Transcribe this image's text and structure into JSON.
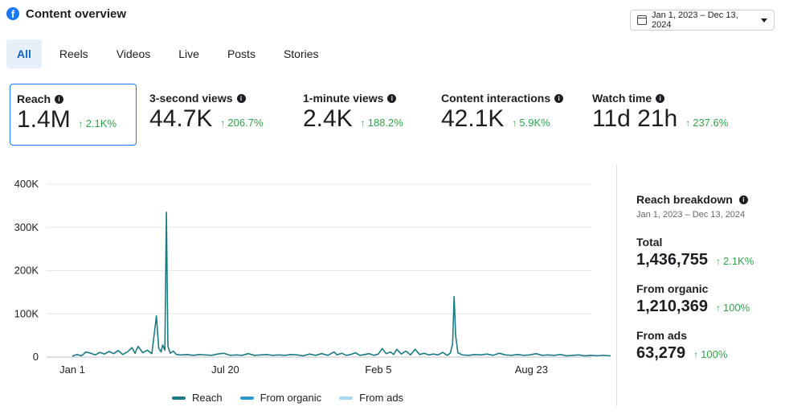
{
  "header": {
    "title": "Content overview",
    "logo_icon": "facebook-icon",
    "logo_letter": "f"
  },
  "date_range": {
    "label": "Jan 1, 2023 – Dec 13, 2024",
    "icon": "calendar-icon"
  },
  "tabs": [
    {
      "label": "All",
      "active": true
    },
    {
      "label": "Reels",
      "active": false
    },
    {
      "label": "Videos",
      "active": false
    },
    {
      "label": "Live",
      "active": false
    },
    {
      "label": "Posts",
      "active": false
    },
    {
      "label": "Stories",
      "active": false
    }
  ],
  "metrics": [
    {
      "label": "Reach",
      "value": "1.4M",
      "change": "2.1K%",
      "selected": true
    },
    {
      "label": "3-second views",
      "value": "44.7K",
      "change": "206.7%",
      "selected": false
    },
    {
      "label": "1-minute views",
      "value": "2.4K",
      "change": "188.2%",
      "selected": false
    },
    {
      "label": "Content interactions",
      "value": "42.1K",
      "change": "5.9K%",
      "selected": false
    },
    {
      "label": "Watch time",
      "value": "11d 21h",
      "change": "237.6%",
      "selected": false
    }
  ],
  "info_glyph": "i",
  "arrow_glyph": "↑",
  "chart_data": {
    "type": "line",
    "y_ticks": [
      "0",
      "100K",
      "200K",
      "300K",
      "400K"
    ],
    "y_tick_values": [
      0,
      100000,
      200000,
      300000,
      400000
    ],
    "ylim": [
      0,
      400000
    ],
    "x_ticks": [
      "Jan 1",
      "Jul 20",
      "Feb 5",
      "Aug 23"
    ],
    "x_tick_days": [
      0,
      200,
      400,
      600
    ],
    "x_range_days": [
      0,
      712
    ],
    "grid": true,
    "legend_placement": "bottom",
    "series": [
      {
        "name": "Reach",
        "color": "#1b7b85",
        "points": [
          [
            0,
            2000
          ],
          [
            6,
            6000
          ],
          [
            12,
            3000
          ],
          [
            18,
            12000
          ],
          [
            24,
            9000
          ],
          [
            30,
            5000
          ],
          [
            36,
            11000
          ],
          [
            42,
            7000
          ],
          [
            48,
            13000
          ],
          [
            54,
            8000
          ],
          [
            60,
            15000
          ],
          [
            66,
            6000
          ],
          [
            72,
            12000
          ],
          [
            78,
            22000
          ],
          [
            82,
            9000
          ],
          [
            86,
            25000
          ],
          [
            92,
            10000
          ],
          [
            98,
            16000
          ],
          [
            104,
            8000
          ],
          [
            110,
            95000
          ],
          [
            113,
            20000
          ],
          [
            116,
            12000
          ],
          [
            118,
            28000
          ],
          [
            121,
            16000
          ],
          [
            123,
            335000
          ],
          [
            125,
            25000
          ],
          [
            128,
            9000
          ],
          [
            132,
            14000
          ],
          [
            136,
            6000
          ],
          [
            142,
            5000
          ],
          [
            150,
            6000
          ],
          [
            158,
            4000
          ],
          [
            166,
            6000
          ],
          [
            174,
            5000
          ],
          [
            182,
            4000
          ],
          [
            190,
            7000
          ],
          [
            198,
            9000
          ],
          [
            206,
            4000
          ],
          [
            214,
            5000
          ],
          [
            222,
            4000
          ],
          [
            230,
            8000
          ],
          [
            238,
            4000
          ],
          [
            246,
            5000
          ],
          [
            254,
            6000
          ],
          [
            262,
            4000
          ],
          [
            270,
            5000
          ],
          [
            278,
            4000
          ],
          [
            286,
            6000
          ],
          [
            294,
            5000
          ],
          [
            302,
            3000
          ],
          [
            310,
            7000
          ],
          [
            318,
            4000
          ],
          [
            326,
            8000
          ],
          [
            334,
            4000
          ],
          [
            342,
            12000
          ],
          [
            346,
            5000
          ],
          [
            352,
            9000
          ],
          [
            358,
            4000
          ],
          [
            364,
            6000
          ],
          [
            370,
            10000
          ],
          [
            376,
            4000
          ],
          [
            382,
            6000
          ],
          [
            388,
            8000
          ],
          [
            394,
            4000
          ],
          [
            400,
            7000
          ],
          [
            405,
            20000
          ],
          [
            410,
            8000
          ],
          [
            416,
            12000
          ],
          [
            420,
            6000
          ],
          [
            424,
            18000
          ],
          [
            430,
            7000
          ],
          [
            436,
            14000
          ],
          [
            442,
            5000
          ],
          [
            448,
            18000
          ],
          [
            454,
            6000
          ],
          [
            460,
            9000
          ],
          [
            466,
            5000
          ],
          [
            472,
            7000
          ],
          [
            478,
            5000
          ],
          [
            484,
            11000
          ],
          [
            490,
            4000
          ],
          [
            494,
            9000
          ],
          [
            497,
            30000
          ],
          [
            499,
            140000
          ],
          [
            501,
            50000
          ],
          [
            504,
            10000
          ],
          [
            510,
            5000
          ],
          [
            518,
            4000
          ],
          [
            526,
            6000
          ],
          [
            534,
            5000
          ],
          [
            542,
            7000
          ],
          [
            550,
            4000
          ],
          [
            558,
            9000
          ],
          [
            566,
            5000
          ],
          [
            574,
            4000
          ],
          [
            582,
            6000
          ],
          [
            590,
            4000
          ],
          [
            598,
            5000
          ],
          [
            606,
            8000
          ],
          [
            614,
            4000
          ],
          [
            622,
            5000
          ],
          [
            630,
            4000
          ],
          [
            638,
            6000
          ],
          [
            646,
            3000
          ],
          [
            654,
            4000
          ],
          [
            662,
            5000
          ],
          [
            670,
            3000
          ],
          [
            678,
            4000
          ],
          [
            686,
            3000
          ],
          [
            694,
            4000
          ],
          [
            702,
            3000
          ],
          [
            712,
            2000
          ]
        ]
      },
      {
        "name": "From organic",
        "color": "#2c97d1",
        "points": []
      },
      {
        "name": "From ads",
        "color": "#a3d9f5",
        "points": []
      }
    ]
  },
  "breakdown": {
    "title": "Reach breakdown",
    "range": "Jan 1, 2023 – Dec 13, 2024",
    "items": [
      {
        "label": "Total",
        "value": "1,436,755",
        "change": "2.1K%"
      },
      {
        "label": "From organic",
        "value": "1,210,369",
        "change": "100%"
      },
      {
        "label": "From ads",
        "value": "63,279",
        "change": "100%"
      }
    ]
  }
}
